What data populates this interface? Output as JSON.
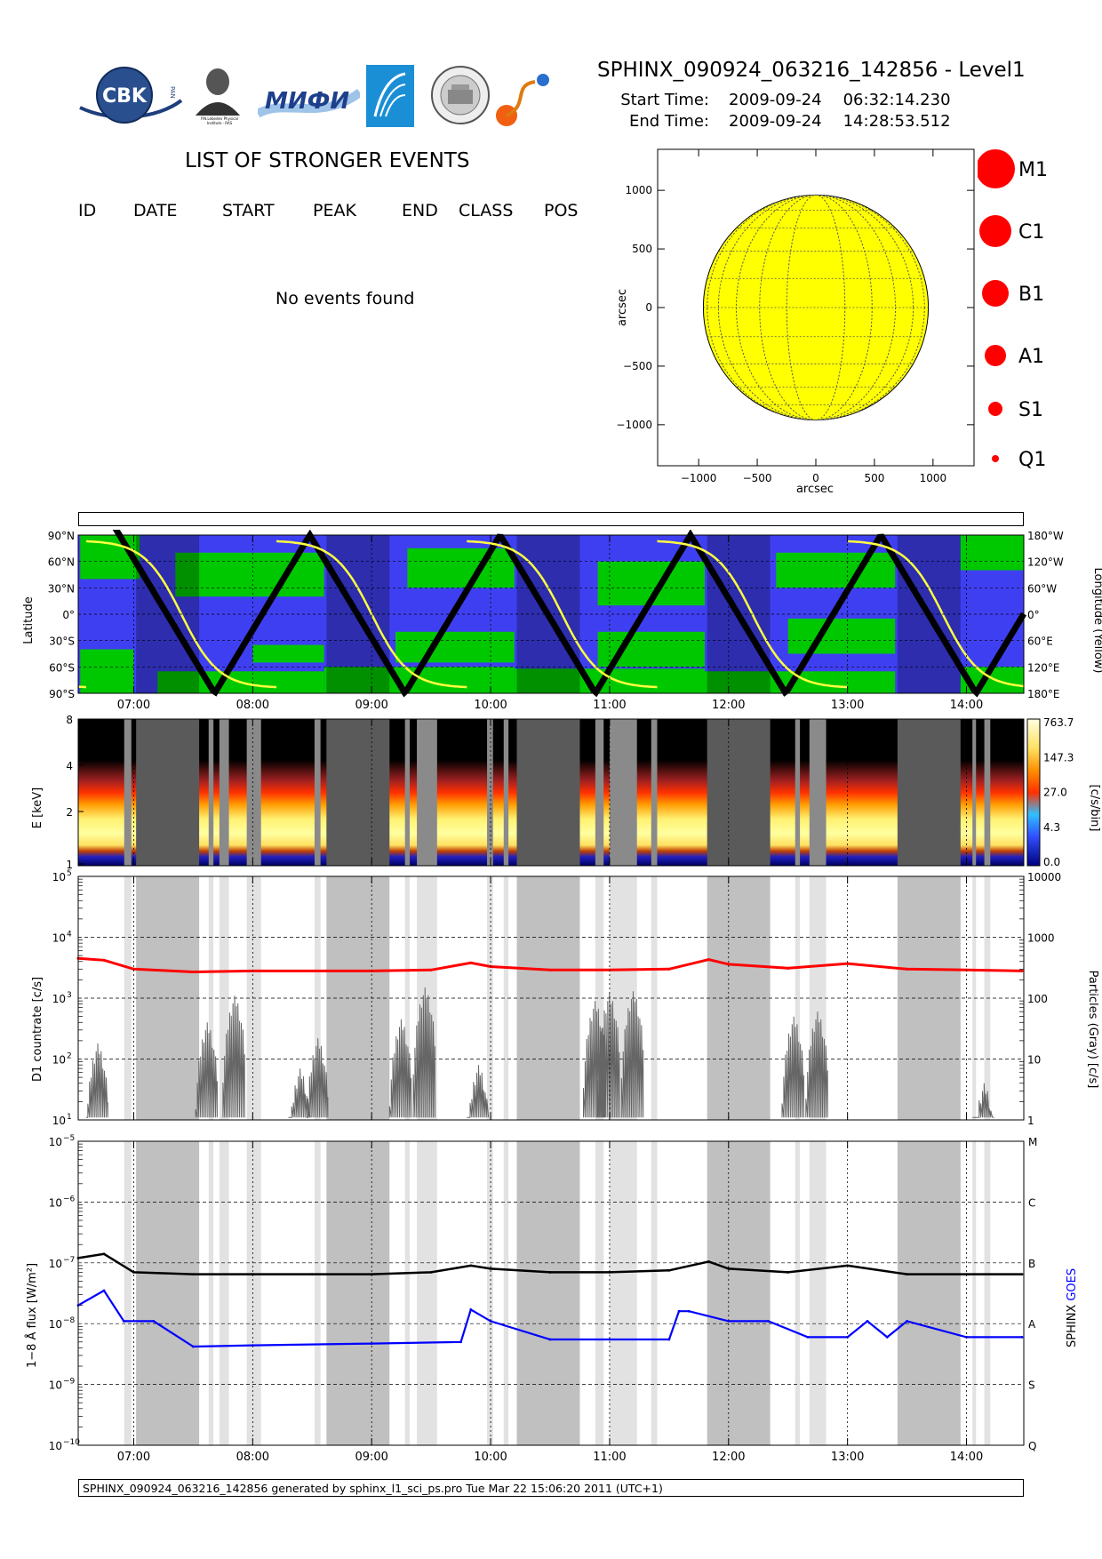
{
  "header": {
    "title": "SPHINX_090924_063216_142856 - Level1",
    "start_label": "Start Time:",
    "start_date": "2009-09-24",
    "start_time": "06:32:14.230",
    "end_label": "End Time:",
    "end_date": "2009-09-24",
    "end_time": "14:28:53.512"
  },
  "logos": {
    "cbk": "CBK",
    "cbk_sub": "PAN",
    "lebedev": "P.N.Lebedev Physical Institute of the Russian Academy of Science",
    "mifi": "MИФИ",
    "seal": "SPECTROSCOPIA PANORAMICA"
  },
  "events": {
    "title": "LIST OF STRONGER EVENTS",
    "columns": [
      "ID",
      "DATE",
      "START",
      "PEAK",
      "END",
      "CLASS",
      "POS"
    ],
    "empty_message": "No events found"
  },
  "sun_map": {
    "xlabel": "arcsec",
    "ylabel": "arcsec",
    "x_ticks": [
      "−1000",
      "−500",
      "0",
      "500",
      "1000"
    ],
    "y_ticks": [
      "1000",
      "500",
      "0",
      "−500",
      "−1000"
    ],
    "disk_color": "#ffff00"
  },
  "size_legend": [
    "M1",
    "C1",
    "B1",
    "A1",
    "S1",
    "Q1"
  ],
  "time_ticks": [
    "07:00",
    "08:00",
    "09:00",
    "10:00",
    "11:00",
    "12:00",
    "13:00",
    "14:00"
  ],
  "orbit_panel": {
    "left_ticks": [
      "90°N",
      "60°N",
      "30°N",
      "0°",
      "30°S",
      "60°S",
      "90°S"
    ],
    "right_ticks": [
      "180°W",
      "120°W",
      "60°W",
      "0°",
      "60°E",
      "120°E",
      "180°E"
    ],
    "left_label": "Latitude",
    "right_label": "Longitude (Yellow)"
  },
  "spectrogram": {
    "y_ticks": [
      "8",
      "4",
      "2",
      "1"
    ],
    "ylabel": "E [keV]",
    "colorbar_ticks": [
      "763.7",
      "147.3",
      "27.0",
      "4.3",
      "0.0"
    ],
    "colorbar_label": "[c/s/bin]"
  },
  "countrate_panel": {
    "left_ticks": [
      "10",
      "10",
      "10",
      "10",
      "10"
    ],
    "left_exp": [
      "5",
      "4",
      "3",
      "2",
      "1"
    ],
    "right_ticks": [
      "10000",
      "1000",
      "100",
      "10",
      "1"
    ],
    "ylabel": "D1 countrate [c/s]",
    "right_label": "Particles (Gray) [c/s]"
  },
  "flux_panel": {
    "left_ticks": [
      "10",
      "10",
      "10",
      "10",
      "10",
      "10"
    ],
    "left_exp": [
      "−5",
      "−6",
      "−7",
      "−8",
      "−9",
      "−10"
    ],
    "right_ticks": [
      "M",
      "C",
      "B",
      "A",
      "S",
      "Q"
    ],
    "ylabel": "1−8 Å flux [W/m²]",
    "right_label_black": "SPHINX",
    "right_label_blue": "GOES"
  },
  "chart_data": [
    {
      "type": "line",
      "title": "",
      "xlabel": "",
      "ylabel": "D1 countrate [c/s]",
      "yscale": "log",
      "ylim": [
        10,
        100000
      ],
      "series": [
        {
          "x": [
            "06:32",
            "06:45",
            "07:00",
            "07:30",
            "08:00",
            "08:30",
            "09:00",
            "09:30",
            "09:50",
            "10:00",
            "10:30",
            "11:00",
            "11:30",
            "11:50",
            "12:00",
            "12:30",
            "13:00",
            "13:30",
            "14:00",
            "14:28"
          ],
          "values": [
            4500,
            4200,
            3000,
            2700,
            2800,
            2800,
            2800,
            2900,
            3800,
            3300,
            2900,
            2900,
            3000,
            4300,
            3600,
            3100,
            3700,
            3000,
            2900,
            2800
          ],
          "color": "#ff0000"
        }
      ]
    },
    {
      "type": "line",
      "title": "",
      "xlabel": "",
      "ylabel": "1−8 Å flux [W/m²]",
      "yscale": "log",
      "ylim": [
        1e-10,
        1e-05
      ],
      "series": [
        {
          "name": "SPHINX",
          "x": [
            "06:32",
            "06:45",
            "07:00",
            "07:30",
            "08:00",
            "08:30",
            "09:00",
            "09:30",
            "09:50",
            "10:00",
            "10:30",
            "11:00",
            "11:30",
            "11:50",
            "12:00",
            "12:30",
            "13:00",
            "13:30",
            "14:00",
            "14:28"
          ],
          "values": [
            1.2e-07,
            1.4e-07,
            7e-08,
            6.5e-08,
            6.5e-08,
            6.5e-08,
            6.5e-08,
            7e-08,
            9e-08,
            8e-08,
            7e-08,
            7e-08,
            7.5e-08,
            1.05e-07,
            8e-08,
            7e-08,
            9e-08,
            6.5e-08,
            6.5e-08,
            6.5e-08
          ],
          "color": "#000000"
        },
        {
          "name": "GOES",
          "x": [
            "06:32",
            "06:45",
            "06:55",
            "07:10",
            "07:30",
            "08:00",
            "09:00",
            "09:45",
            "09:50",
            "10:00",
            "10:30",
            "11:00",
            "11:30",
            "11:35",
            "11:40",
            "12:00",
            "12:20",
            "12:40",
            "13:00",
            "13:10",
            "13:20",
            "13:30",
            "14:00",
            "14:28"
          ],
          "values": [
            2e-08,
            3.5e-08,
            1.1e-08,
            1.1e-08,
            4.2e-09,
            4.4e-09,
            4.7e-09,
            5e-09,
            1.7e-08,
            1.1e-08,
            5.5e-09,
            5.5e-09,
            5.5e-09,
            1.6e-08,
            1.6e-08,
            1.1e-08,
            1.1e-08,
            6e-09,
            6e-09,
            1.1e-08,
            6e-09,
            1.1e-08,
            6e-09,
            6e-09
          ],
          "color": "#0000ff"
        }
      ]
    }
  ]
}
